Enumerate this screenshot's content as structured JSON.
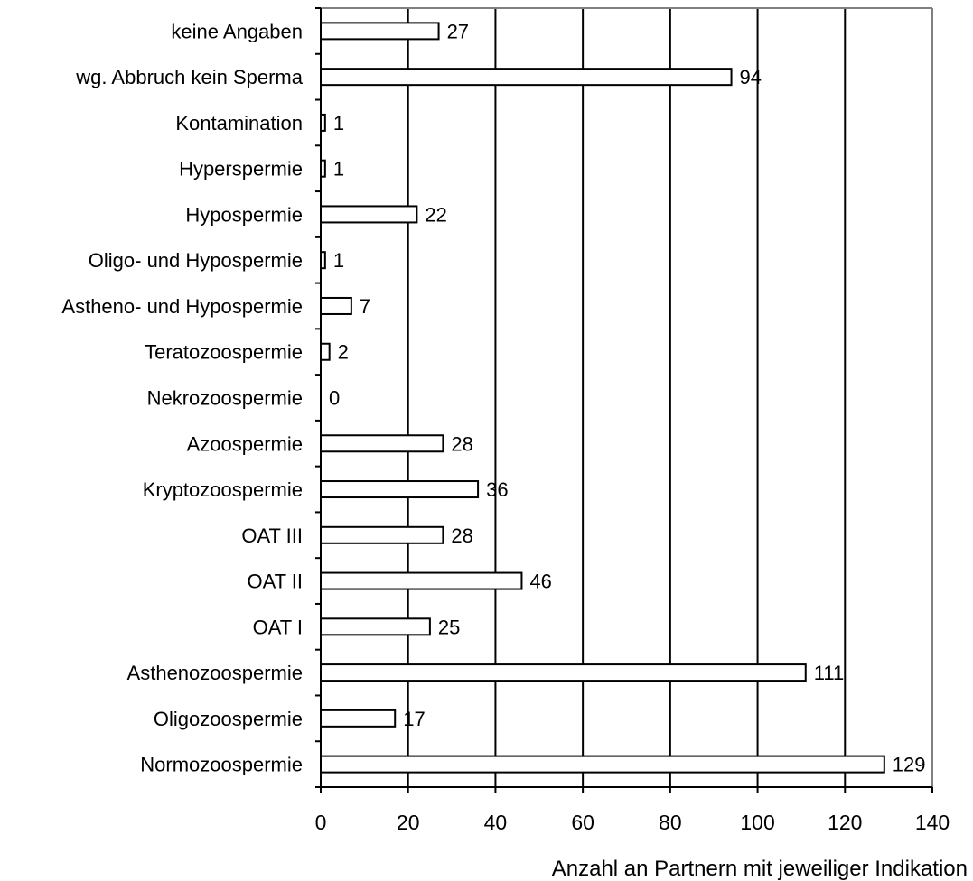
{
  "chart_data": {
    "type": "bar",
    "orientation": "horizontal",
    "categories": [
      "keine Angaben",
      "wg. Abbruch kein Sperma",
      "Kontamination",
      "Hyperspermie",
      "Hypospermie",
      "Oligo- und Hypospermie",
      "Astheno- und Hypospermie",
      "Teratozoospermie",
      "Nekrozoospermie",
      "Azoospermie",
      "Kryptozoospermie",
      "OAT III",
      "OAT II",
      "OAT I",
      "Asthenozoospermie",
      "Oligozoospermie",
      "Normozoospermie"
    ],
    "values": [
      27,
      94,
      1,
      1,
      22,
      1,
      7,
      2,
      0,
      28,
      36,
      28,
      46,
      25,
      111,
      17,
      129
    ],
    "value_labels": [
      "27",
      "94",
      "1",
      "1",
      "22",
      "1",
      "7",
      "2",
      "0",
      "28",
      "36",
      "28",
      "46",
      "25",
      "111",
      "17",
      "129"
    ],
    "xlabel": "Anzahl an Partnern mit jeweiliger Indikation",
    "ylabel": "",
    "xlim": [
      0,
      140
    ],
    "xticks": [
      "0",
      "20",
      "40",
      "60",
      "80",
      "100",
      "120",
      "140"
    ],
    "grid": "vertical",
    "legend": "none",
    "colors": {
      "bar_fill": "#ffffff",
      "bar_stroke": "#000000",
      "grid": "#000000",
      "frame": "#808080"
    }
  }
}
